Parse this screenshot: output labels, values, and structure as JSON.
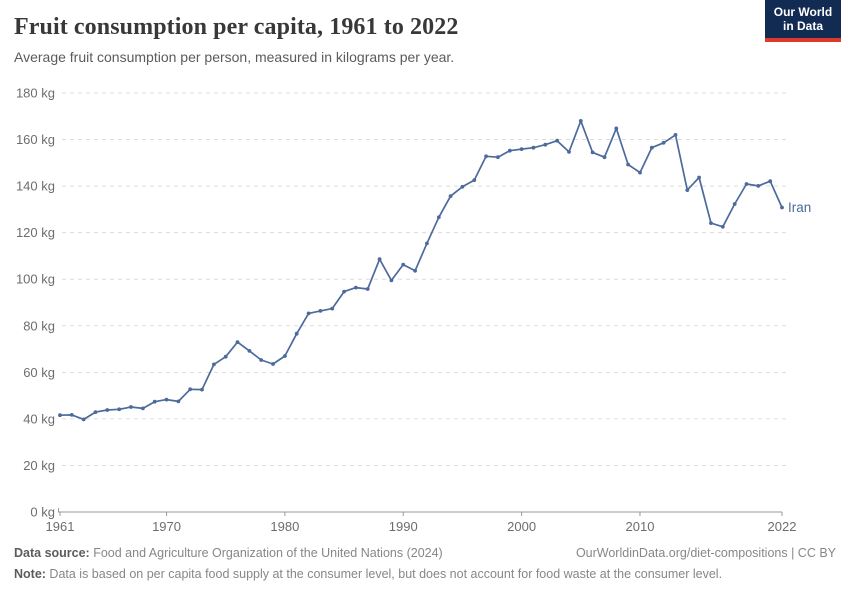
{
  "header": {
    "title": "Fruit consumption per capita, 1961 to 2022",
    "subtitle": "Average fruit consumption per person, measured in kilograms per year.",
    "logo": {
      "line1": "Our World",
      "line2": "in Data",
      "bg_color": "#122B53",
      "accent_color": "#DE3A2C"
    }
  },
  "chart_data": {
    "type": "line",
    "title": "Fruit consumption per capita, 1961 to 2022",
    "xlabel": "",
    "ylabel": "",
    "unit": "kg",
    "ylim": [
      0,
      180
    ],
    "ytick_step": 20,
    "ytick_suffix": " kg",
    "xticks": [
      1961,
      1970,
      1980,
      1990,
      2000,
      2010,
      2022
    ],
    "grid": "dashed",
    "legend_position": "end-of-line-label",
    "x": [
      1961,
      1962,
      1963,
      1964,
      1965,
      1966,
      1967,
      1968,
      1969,
      1970,
      1971,
      1972,
      1973,
      1974,
      1975,
      1976,
      1977,
      1978,
      1979,
      1980,
      1981,
      1982,
      1983,
      1984,
      1985,
      1986,
      1987,
      1988,
      1989,
      1990,
      1991,
      1992,
      1993,
      1994,
      1995,
      1996,
      1997,
      1998,
      1999,
      2000,
      2001,
      2002,
      2003,
      2004,
      2005,
      2006,
      2007,
      2008,
      2009,
      2010,
      2011,
      2012,
      2013,
      2014,
      2015,
      2016,
      2017,
      2018,
      2019,
      2020,
      2021,
      2022
    ],
    "series": [
      {
        "name": "Iran",
        "color": "#4C6A9C",
        "values": [
          41.6,
          41.7,
          39.8,
          42.9,
          43.8,
          44.1,
          45.1,
          44.5,
          47.4,
          48.3,
          47.5,
          52.7,
          52.6,
          63.4,
          66.7,
          73.0,
          69.2,
          65.3,
          63.6,
          67.0,
          76.6,
          85.3,
          86.4,
          87.4,
          94.7,
          96.4,
          95.8,
          108.6,
          99.5,
          106.3,
          103.6,
          115.4,
          126.6,
          135.7,
          139.7,
          142.6,
          152.8,
          152.4,
          155.2,
          155.9,
          156.5,
          157.8,
          159.5,
          154.7,
          168.0,
          154.5,
          152.4,
          164.8,
          149.3,
          145.8,
          156.5,
          158.6,
          162.0,
          138.3,
          143.7,
          124.1,
          122.5,
          132.3,
          140.9,
          140.1,
          142.1,
          130.8
        ]
      }
    ],
    "axis_colors": {
      "tick_label": "#6d6d6d",
      "gridline": "#dcdcdc",
      "axis_line": "#999999"
    }
  },
  "footer": {
    "source_label": "Data source:",
    "source_text": " Food and Agriculture Organization of the United Nations (2024)",
    "right_text": "OurWorldinData.org/diet-compositions | CC BY",
    "note_label": "Note:",
    "note_text": " Data is based on per capita food supply at the consumer level, but does not account for food waste at the consumer level."
  }
}
